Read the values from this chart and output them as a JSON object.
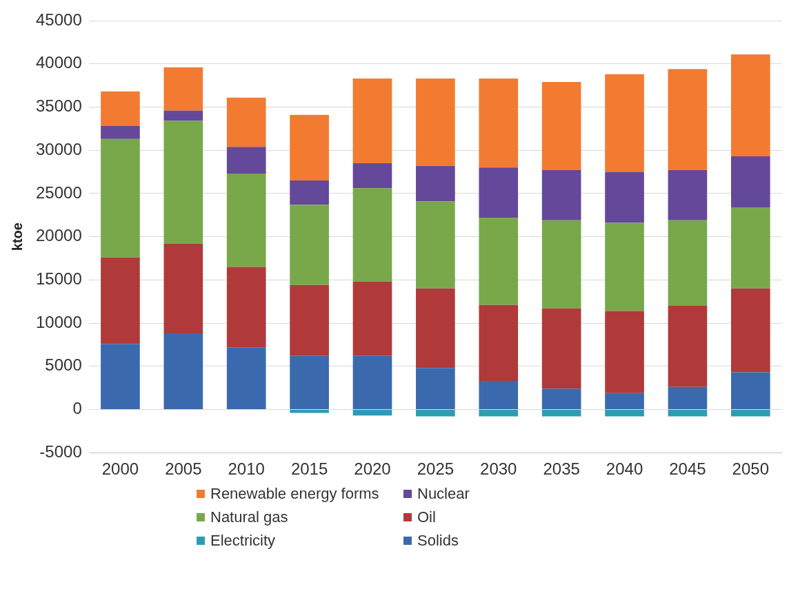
{
  "chart_data": {
    "type": "bar",
    "stacked": true,
    "ylabel": "ktoe",
    "categories": [
      "2000",
      "2005",
      "2010",
      "2015",
      "2020",
      "2025",
      "2030",
      "2035",
      "2040",
      "2045",
      "2050"
    ],
    "series": [
      {
        "name": "Solids",
        "color": "#3a6aad",
        "values": [
          7600,
          8800,
          7200,
          6200,
          6200,
          4800,
          3300,
          2400,
          1900,
          2600,
          4300
        ]
      },
      {
        "name": "Electricity",
        "color": "#2e9bb4",
        "values": [
          0,
          0,
          0,
          -400,
          -700,
          -800,
          -800,
          -800,
          -800,
          -800,
          -800
        ]
      },
      {
        "name": "Oil",
        "color": "#b03a3a",
        "values": [
          10000,
          10400,
          9300,
          8200,
          8600,
          9200,
          8800,
          9300,
          9500,
          9400,
          9700
        ]
      },
      {
        "name": "Natural gas",
        "color": "#78a84a",
        "values": [
          13700,
          14200,
          10800,
          9300,
          10800,
          10100,
          10100,
          10200,
          10200,
          9900,
          9400
        ]
      },
      {
        "name": "Nuclear",
        "color": "#64489a",
        "values": [
          1500,
          1200,
          3100,
          2800,
          2900,
          4100,
          5800,
          5800,
          5900,
          5800,
          5900
        ]
      },
      {
        "name": "Renewable energy forms",
        "color": "#f27b31",
        "values": [
          4000,
          5000,
          5700,
          7600,
          9800,
          10100,
          10300,
          10200,
          11300,
          11700,
          11800
        ]
      }
    ],
    "ylim": [
      -5000,
      45000
    ],
    "yticks": [
      -5000,
      0,
      5000,
      10000,
      15000,
      20000,
      25000,
      30000,
      35000,
      40000,
      45000
    ],
    "grid": "y",
    "legend": "bottom"
  }
}
